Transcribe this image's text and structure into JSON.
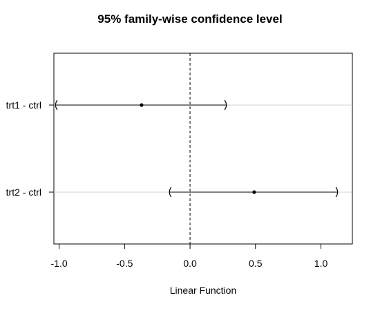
{
  "chart_data": {
    "type": "interval",
    "title": "95% family-wise confidence level",
    "xlabel": "Linear Function",
    "ylabel": "",
    "xlim": [
      -1.04,
      1.24
    ],
    "x_ticks": [
      -1.0,
      -0.5,
      0.0,
      0.5,
      1.0
    ],
    "x_tick_labels": [
      "-1.0",
      "-0.5",
      "0.0",
      "0.5",
      "1.0"
    ],
    "reference_line": 0.0,
    "grid": "horizontal at each comparison",
    "comparisons": [
      {
        "label": "trt1 - ctrl",
        "estimate": -0.37,
        "lower": -1.03,
        "upper": 0.28
      },
      {
        "label": "trt2 - ctrl",
        "estimate": 0.49,
        "lower": -0.16,
        "upper": 1.13
      }
    ]
  }
}
